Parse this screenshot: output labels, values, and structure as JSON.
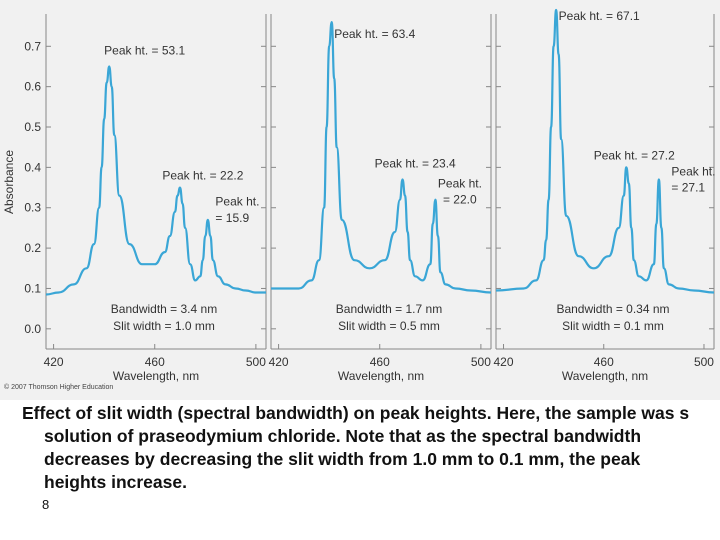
{
  "chart_data": {
    "type": "line",
    "ylabel": "Absorbance",
    "xlabel": "Wavelength, nm",
    "xlim": [
      417,
      504
    ],
    "ylim": [
      -0.05,
      0.78
    ],
    "yticks": [
      0.0,
      0.1,
      0.2,
      0.3,
      0.4,
      0.5,
      0.6,
      0.7
    ],
    "xticks": [
      420,
      460,
      500
    ],
    "line_color": "#3aa6d6",
    "grid": false,
    "panels": [
      {
        "bandwidth": "Bandwidth = 3.4 nm",
        "slit": "Slit width = 1.0 mm",
        "x": [
          417,
          422,
          428,
          433,
          436,
          438,
          439,
          440,
          441,
          442,
          443,
          444,
          446,
          450,
          455,
          460,
          464,
          466,
          468,
          469,
          470,
          471,
          472,
          474,
          476,
          478,
          479,
          480,
          481,
          482,
          483,
          485,
          488,
          492,
          496,
          500,
          504
        ],
        "y": [
          0.085,
          0.09,
          0.11,
          0.15,
          0.21,
          0.3,
          0.4,
          0.52,
          0.61,
          0.65,
          0.6,
          0.48,
          0.33,
          0.21,
          0.16,
          0.16,
          0.19,
          0.23,
          0.29,
          0.33,
          0.35,
          0.31,
          0.25,
          0.16,
          0.12,
          0.13,
          0.17,
          0.23,
          0.27,
          0.23,
          0.17,
          0.13,
          0.11,
          0.1,
          0.095,
          0.09,
          0.09
        ],
        "annotations": [
          {
            "text": "Peak ht. = 53.1",
            "x": 440,
            "y": 0.68
          },
          {
            "text": "Peak ht. = 22.2",
            "x": 463,
            "y": 0.37
          },
          {
            "text": "Peak ht.",
            "x": 484,
            "y": 0.305
          },
          {
            "text": "= 15.9",
            "x": 484,
            "y": 0.265
          }
        ]
      },
      {
        "bandwidth": "Bandwidth = 1.7 nm",
        "slit": "Slit width = 0.5 mm",
        "x": [
          417,
          428,
          433,
          436,
          438,
          439,
          440,
          441,
          442,
          443,
          445,
          450,
          456,
          462,
          466,
          468,
          469,
          470,
          471,
          472,
          474,
          477,
          480,
          481,
          482,
          483,
          484,
          486,
          490,
          496,
          504
        ],
        "y": [
          0.1,
          0.1,
          0.12,
          0.17,
          0.3,
          0.5,
          0.7,
          0.76,
          0.62,
          0.45,
          0.27,
          0.17,
          0.15,
          0.17,
          0.24,
          0.32,
          0.37,
          0.33,
          0.24,
          0.17,
          0.13,
          0.12,
          0.16,
          0.26,
          0.32,
          0.23,
          0.14,
          0.11,
          0.1,
          0.095,
          0.09
        ],
        "annotations": [
          {
            "text": "Peak ht. = 63.4",
            "x": 442,
            "y": 0.72
          },
          {
            "text": "Peak ht. = 23.4",
            "x": 458,
            "y": 0.4
          },
          {
            "text": "Peak ht.",
            "x": 483,
            "y": 0.35
          },
          {
            "text": "= 22.0",
            "x": 485,
            "y": 0.31
          }
        ]
      },
      {
        "bandwidth": "Bandwidth = 0.34 nm",
        "slit": "Slit width = 0.1 mm",
        "x": [
          417,
          428,
          433,
          436,
          437,
          438,
          439,
          440,
          441,
          442,
          443,
          445,
          450,
          456,
          462,
          466,
          468,
          469,
          470,
          471,
          472,
          474,
          477,
          480,
          481,
          482,
          483,
          484,
          486,
          490,
          496,
          504
        ],
        "y": [
          0.095,
          0.1,
          0.12,
          0.17,
          0.22,
          0.32,
          0.5,
          0.7,
          0.79,
          0.68,
          0.47,
          0.28,
          0.18,
          0.15,
          0.18,
          0.25,
          0.33,
          0.4,
          0.36,
          0.25,
          0.17,
          0.13,
          0.12,
          0.16,
          0.26,
          0.37,
          0.25,
          0.15,
          0.11,
          0.1,
          0.095,
          0.09
        ],
        "annotations": [
          {
            "text": "Peak ht. = 67.1",
            "x": 442,
            "y": 0.765
          },
          {
            "text": "Peak ht. = 27.2",
            "x": 456,
            "y": 0.42
          },
          {
            "text": "Peak ht.",
            "x": 487,
            "y": 0.38
          },
          {
            "text": "= 27.1",
            "x": 487,
            "y": 0.34
          }
        ]
      }
    ]
  },
  "credit": "© 2007 Thomson Higher Education",
  "caption": "Effect of slit width (spectral bandwidth) on peak heights. Here, the sample was s solution of praseodymium chloride. Note that as the spectral bandwidth decreases by decreasing the slit width from 1.0 mm to 0.1 mm, the peak heights increase.",
  "page_number": "8"
}
